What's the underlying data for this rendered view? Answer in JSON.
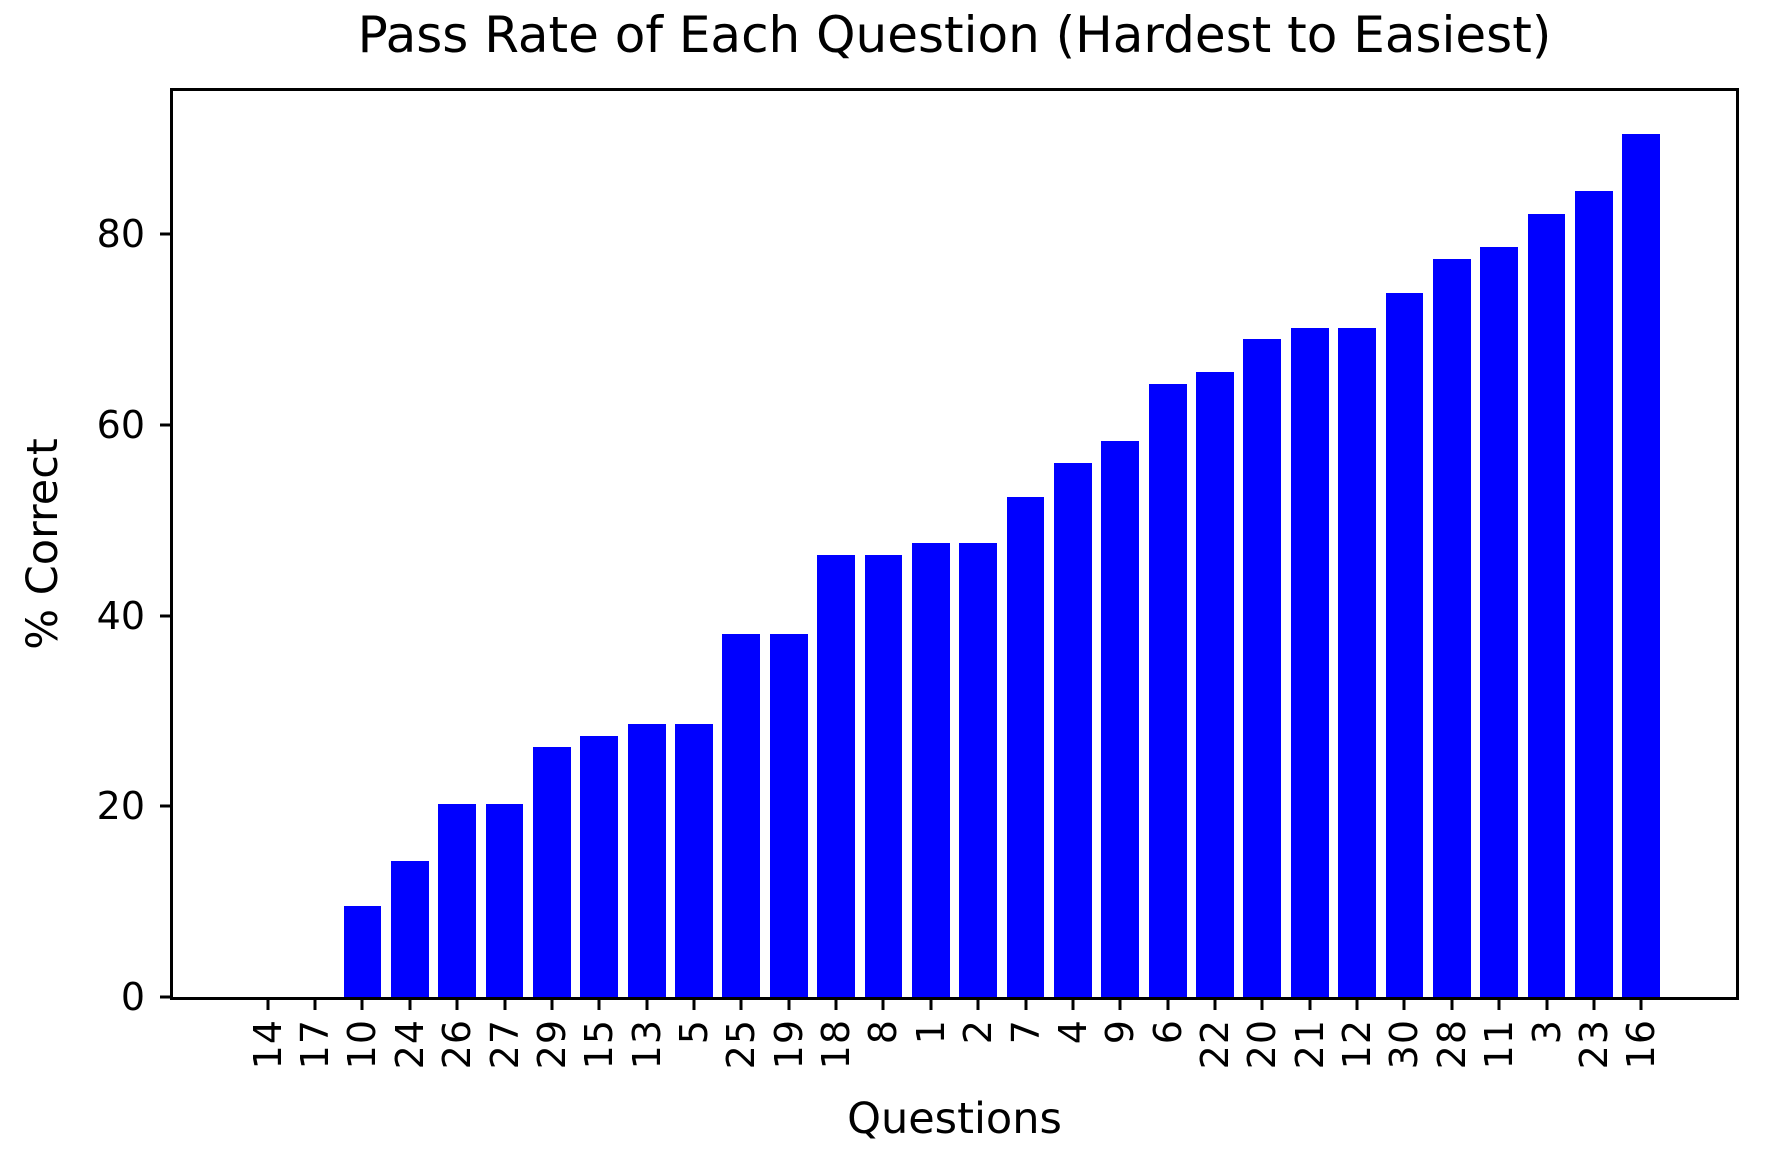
{
  "chart_data": {
    "type": "bar",
    "title": "Pass Rate of Each Question (Hardest to Easiest)",
    "xlabel": "Questions",
    "ylabel": "% Correct",
    "categories": [
      "14",
      "17",
      "10",
      "24",
      "26",
      "27",
      "29",
      "15",
      "13",
      "5",
      "25",
      "19",
      "18",
      "8",
      "1",
      "2",
      "7",
      "4",
      "9",
      "6",
      "22",
      "20",
      "21",
      "12",
      "30",
      "28",
      "11",
      "3",
      "23",
      "16"
    ],
    "values": [
      0,
      0,
      9.5,
      14.3,
      20.2,
      20.2,
      26.2,
      27.4,
      28.6,
      28.6,
      38.1,
      38.1,
      46.4,
      46.4,
      47.6,
      47.6,
      52.4,
      56.0,
      58.3,
      64.3,
      65.5,
      69.0,
      70.2,
      70.2,
      73.8,
      77.4,
      78.6,
      82.1,
      84.5,
      90.5
    ],
    "yticks": [
      0,
      20,
      40,
      60,
      80
    ],
    "ylim": [
      0,
      95
    ],
    "bar_color": "#0000FF",
    "axis_color": "#000000",
    "background_color": "#FFFFFF",
    "grid": false,
    "legend_position": "none",
    "xtick_rotation": 90
  }
}
